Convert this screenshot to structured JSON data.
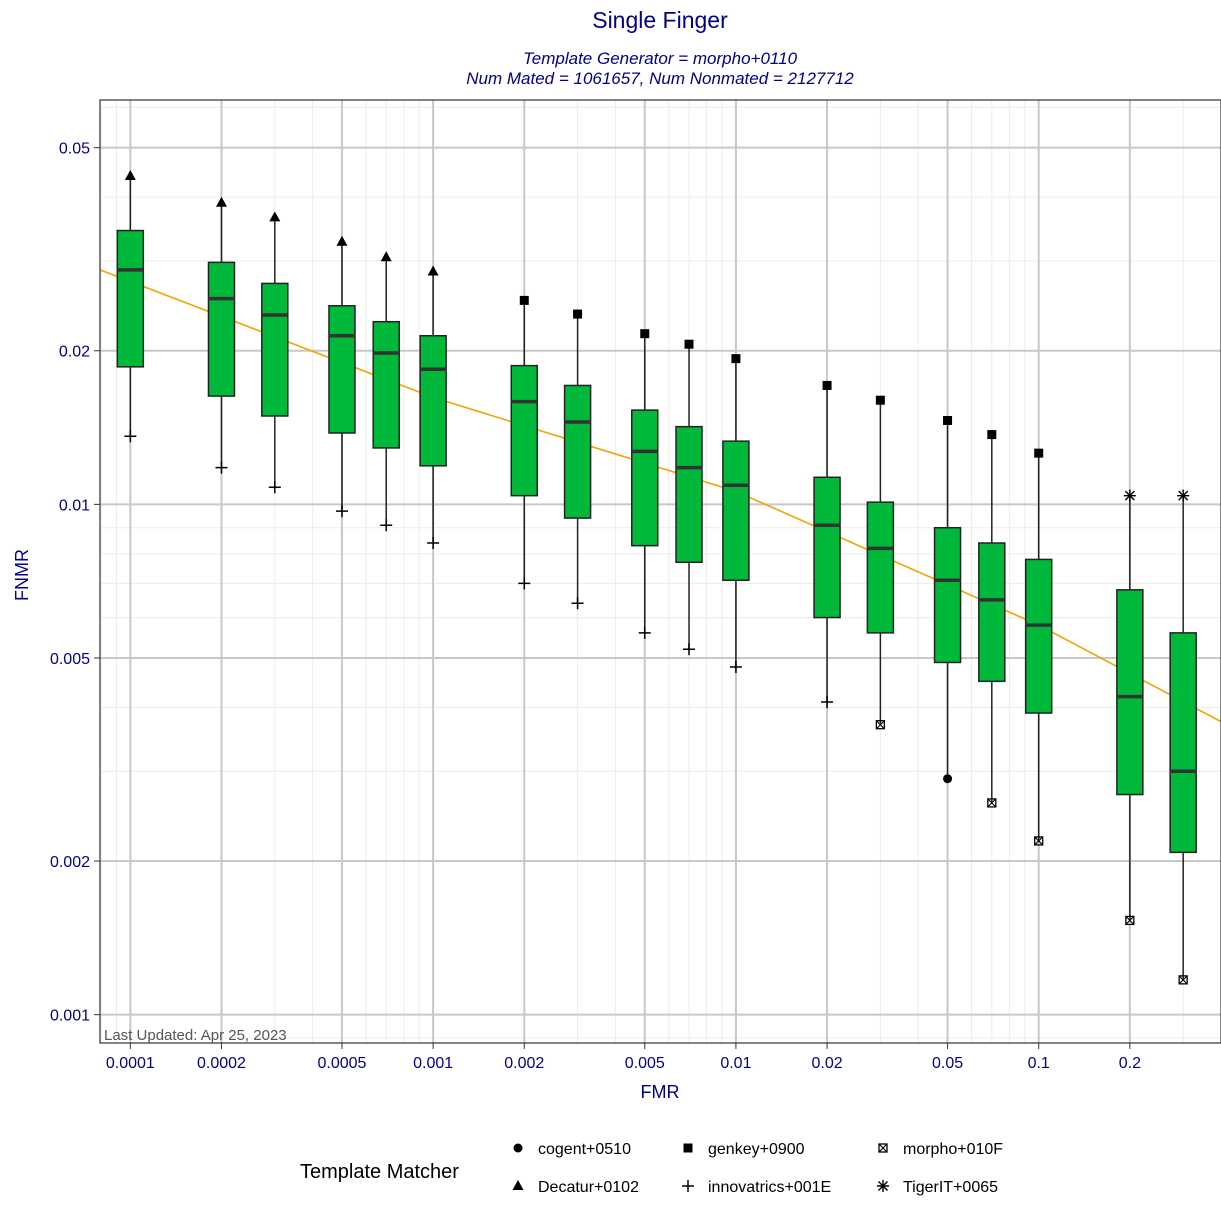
{
  "chart_data": {
    "type": "box",
    "title": "Single Finger",
    "subtitle_lines": [
      "Template Generator = morpho+0110",
      "Num Mated = 1061657, Num Nonmated = 2127712"
    ],
    "xlabel": "FMR",
    "ylabel": "FNMR",
    "x_scale": "log",
    "y_scale": "log",
    "xlim": [
      7.94e-05,
      0.4
    ],
    "ylim": [
      0.00088,
      0.062
    ],
    "x_ticks": [
      0.0001,
      0.0002,
      0.0005,
      0.001,
      0.002,
      0.005,
      0.01,
      0.02,
      0.05,
      0.1,
      0.2
    ],
    "x_tick_labels": [
      "0.0001",
      "0.0002",
      "0.0005",
      "0.001",
      "0.002",
      "0.005",
      "0.01",
      "0.02",
      "0.05",
      "0.1",
      "0.2"
    ],
    "y_ticks": [
      0.001,
      0.002,
      0.005,
      0.01,
      0.02,
      0.05
    ],
    "y_tick_labels": [
      "0.001",
      "0.002",
      "0.005",
      "0.01",
      "0.02",
      "0.05"
    ],
    "grid": true,
    "annotation": "Last Updated: Apr 25, 2023",
    "colors": {
      "title": "#00008b",
      "box_fill": "#00b93a",
      "box_stroke": "#222222",
      "fit_line": "#f5a300",
      "grid_major": "#c8c8c8",
      "grid_minor": "#ececec",
      "marker": "#000000"
    },
    "fit_line": {
      "description": "",
      "points": [
        {
          "x": 7.94e-05,
          "y": 0.0288
        },
        {
          "x": 0.001,
          "y": 0.0162
        },
        {
          "x": 0.01,
          "y": 0.0106
        },
        {
          "x": 0.1,
          "y": 0.0058
        },
        {
          "x": 0.4,
          "y": 0.00375
        }
      ]
    },
    "boxes": [
      {
        "fmr": 0.0001,
        "max": 0.044,
        "q3": 0.0344,
        "median": 0.0288,
        "q1": 0.0186,
        "min": 0.0136,
        "max_marker": "triangle",
        "min_marker": "plus"
      },
      {
        "fmr": 0.0002,
        "max": 0.039,
        "q3": 0.0298,
        "median": 0.0253,
        "q1": 0.0163,
        "min": 0.0118,
        "max_marker": "triangle",
        "min_marker": "plus"
      },
      {
        "fmr": 0.0003,
        "max": 0.0365,
        "q3": 0.0271,
        "median": 0.0235,
        "q1": 0.0149,
        "min": 0.0108,
        "max_marker": "triangle",
        "min_marker": "plus"
      },
      {
        "fmr": 0.0005,
        "max": 0.0327,
        "q3": 0.0245,
        "median": 0.0214,
        "q1": 0.0138,
        "min": 0.0097,
        "max_marker": "triangle",
        "min_marker": "plus"
      },
      {
        "fmr": 0.0007,
        "max": 0.0305,
        "q3": 0.0228,
        "median": 0.0198,
        "q1": 0.0129,
        "min": 0.0091,
        "max_marker": "triangle",
        "min_marker": "plus"
      },
      {
        "fmr": 0.001,
        "max": 0.0286,
        "q3": 0.0214,
        "median": 0.0184,
        "q1": 0.0119,
        "min": 0.0084,
        "max_marker": "triangle",
        "min_marker": "plus"
      },
      {
        "fmr": 0.002,
        "max": 0.0251,
        "q3": 0.0187,
        "median": 0.0159,
        "q1": 0.0104,
        "min": 0.007,
        "max_marker": "square",
        "min_marker": "plus"
      },
      {
        "fmr": 0.003,
        "max": 0.0236,
        "q3": 0.0171,
        "median": 0.0145,
        "q1": 0.0094,
        "min": 0.0064,
        "max_marker": "square",
        "min_marker": "plus"
      },
      {
        "fmr": 0.005,
        "max": 0.0216,
        "q3": 0.0153,
        "median": 0.0127,
        "q1": 0.0083,
        "min": 0.0056,
        "max_marker": "square",
        "min_marker": "plus"
      },
      {
        "fmr": 0.007,
        "max": 0.0206,
        "q3": 0.0142,
        "median": 0.0118,
        "q1": 0.0077,
        "min": 0.0052,
        "max_marker": "square",
        "min_marker": "plus"
      },
      {
        "fmr": 0.01,
        "max": 0.0193,
        "q3": 0.0133,
        "median": 0.0109,
        "q1": 0.0071,
        "min": 0.0048,
        "max_marker": "square",
        "min_marker": "plus"
      },
      {
        "fmr": 0.02,
        "max": 0.0171,
        "q3": 0.0113,
        "median": 0.0091,
        "q1": 0.006,
        "min": 0.0041,
        "max_marker": "square",
        "min_marker": "plus"
      },
      {
        "fmr": 0.03,
        "max": 0.016,
        "q3": 0.0101,
        "median": 0.0082,
        "q1": 0.0056,
        "min": 0.0037,
        "max_marker": "square",
        "min_marker": "boxed-x"
      },
      {
        "fmr": 0.05,
        "max": 0.0146,
        "q3": 0.009,
        "median": 0.0071,
        "q1": 0.0049,
        "min": 0.0029,
        "max_marker": "square",
        "min_marker": "circle"
      },
      {
        "fmr": 0.07,
        "max": 0.0137,
        "q3": 0.0084,
        "median": 0.0065,
        "q1": 0.0045,
        "min": 0.0026,
        "max_marker": "square",
        "min_marker": "boxed-x"
      },
      {
        "fmr": 0.1,
        "max": 0.0126,
        "q3": 0.0078,
        "median": 0.0058,
        "q1": 0.0039,
        "min": 0.00219,
        "max_marker": "square",
        "min_marker": "boxed-x"
      },
      {
        "fmr": 0.2,
        "max": 0.0104,
        "q3": 0.0068,
        "median": 0.0042,
        "q1": 0.0027,
        "min": 0.00153,
        "max_marker": "asterisk",
        "min_marker": "boxed-x"
      },
      {
        "fmr": 0.3,
        "max": 0.0104,
        "q3": 0.0056,
        "median": 0.003,
        "q1": 0.00208,
        "min": 0.00117,
        "max_marker": "asterisk",
        "min_marker": "boxed-x"
      }
    ],
    "legend": {
      "title": "Template Matcher",
      "placement": "bottom",
      "entries": [
        {
          "label": "cogent+0510",
          "marker": "circle"
        },
        {
          "label": "genkey+0900",
          "marker": "square"
        },
        {
          "label": "morpho+010F",
          "marker": "boxed-x"
        },
        {
          "label": "Decatur+0102",
          "marker": "triangle"
        },
        {
          "label": "innovatrics+001E",
          "marker": "plus"
        },
        {
          "label": "TigerIT+0065",
          "marker": "asterisk"
        }
      ]
    }
  }
}
